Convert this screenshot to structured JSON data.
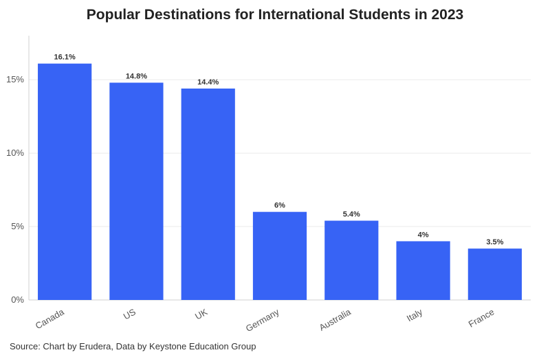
{
  "chart_data": {
    "type": "bar",
    "title": "Popular Destinations for International Students in 2023",
    "categories": [
      "Canada",
      "US",
      "UK",
      "Germany",
      "Australia",
      "Italy",
      "France"
    ],
    "values": [
      16.1,
      14.8,
      14.4,
      6,
      5.4,
      4,
      3.5
    ],
    "data_labels": [
      "16.1%",
      "14.8%",
      "14.4%",
      "6%",
      "5.4%",
      "4%",
      "3.5%"
    ],
    "y_ticks": [
      0,
      5,
      10,
      15
    ],
    "y_tick_labels": [
      "0%",
      "5%",
      "10%",
      "15%"
    ],
    "ylim": [
      0,
      18
    ],
    "xlabel": "",
    "ylabel": "",
    "grid": true,
    "bar_color": "#3763f5",
    "source": "Source: Chart by Erudera, Data by Keystone Education Group"
  }
}
